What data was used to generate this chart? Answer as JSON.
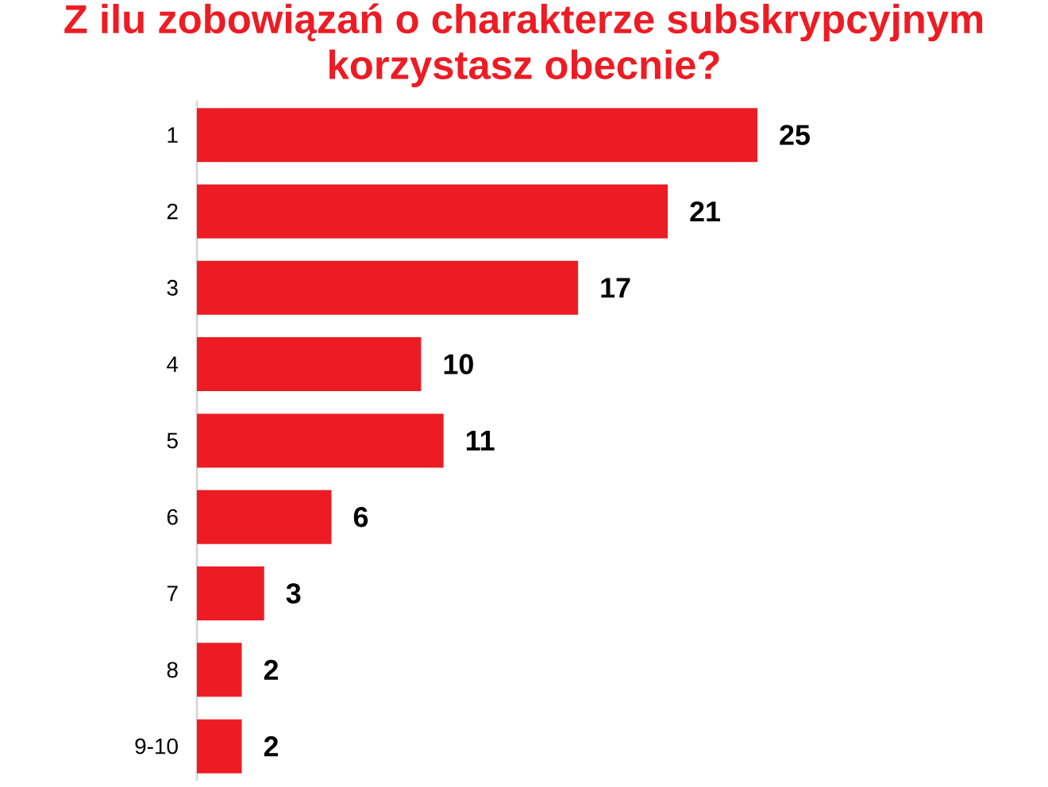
{
  "chart_data": {
    "type": "bar",
    "orientation": "horizontal",
    "title": "Z ilu zobowiązań o charakterze subskrypcyjnym korzystasz obecnie?",
    "categories": [
      "1",
      "2",
      "3",
      "4",
      "5",
      "6",
      "7",
      "8",
      "9-10"
    ],
    "values": [
      25,
      21,
      17,
      10,
      11,
      6,
      3,
      2,
      2
    ],
    "color": "#ed1c24",
    "data_labels": true
  }
}
